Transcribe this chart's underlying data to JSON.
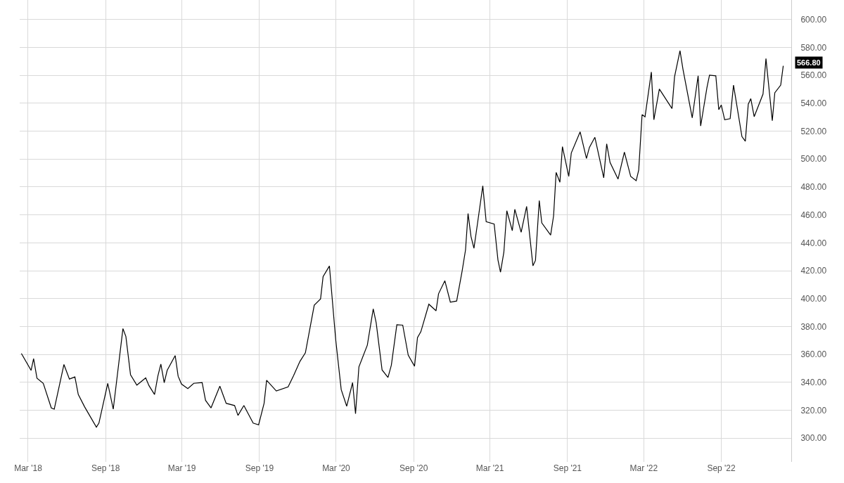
{
  "chart_data": {
    "type": "line",
    "color": "#000000",
    "grid": true,
    "x": [
      "2018-02-13",
      "2018-03-08",
      "2018-03-14",
      "2018-03-22",
      "2018-04-06",
      "2018-04-25",
      "2018-05-02",
      "2018-05-25",
      "2018-06-07",
      "2018-06-20",
      "2018-06-28",
      "2018-07-13",
      "2018-08-10",
      "2018-08-16",
      "2018-09-06",
      "2018-09-19",
      "2018-10-12",
      "2018-10-19",
      "2018-10-30",
      "2018-11-14",
      "2018-12-05",
      "2018-12-13",
      "2018-12-26",
      "2019-01-03",
      "2019-01-10",
      "2019-01-18",
      "2019-01-25",
      "2019-02-13",
      "2019-02-20",
      "2019-02-28",
      "2019-03-15",
      "2019-03-29",
      "2019-04-18",
      "2019-04-26",
      "2019-05-09",
      "2019-05-30",
      "2019-06-14",
      "2019-07-04",
      "2019-07-12",
      "2019-07-26",
      "2019-08-17",
      "2019-08-30",
      "2019-09-12",
      "2019-09-18",
      "2019-10-11",
      "2019-11-08",
      "2019-11-21",
      "2019-12-06",
      "2019-12-19",
      "2020-01-09",
      "2020-01-24",
      "2020-01-30",
      "2020-02-14",
      "2020-02-29",
      "2020-03-13",
      "2020-03-26",
      "2020-04-09",
      "2020-04-16",
      "2020-04-24",
      "2020-05-14",
      "2020-05-28",
      "2020-06-04",
      "2020-06-18",
      "2020-07-02",
      "2020-07-10",
      "2020-07-23",
      "2020-08-06",
      "2020-08-19",
      "2020-09-03",
      "2020-09-10",
      "2020-09-18",
      "2020-10-07",
      "2020-10-24",
      "2020-10-30",
      "2020-11-14",
      "2020-11-27",
      "2020-12-12",
      "2020-12-25",
      "2021-01-02",
      "2021-01-08",
      "2021-01-15",
      "2021-01-22",
      "2021-01-30",
      "2021-02-12",
      "2021-02-20",
      "2021-03-11",
      "2021-03-20",
      "2021-03-26",
      "2021-04-03",
      "2021-04-10",
      "2021-04-23",
      "2021-04-29",
      "2021-05-14",
      "2021-05-27",
      "2021-06-11",
      "2021-06-17",
      "2021-06-26",
      "2021-07-02",
      "2021-07-23",
      "2021-07-30",
      "2021-08-05",
      "2021-08-14",
      "2021-08-20",
      "2021-09-04",
      "2021-09-10",
      "2021-10-01",
      "2021-10-16",
      "2021-10-23",
      "2021-11-05",
      "2021-11-26",
      "2021-12-03",
      "2021-12-11",
      "2021-12-30",
      "2022-01-14",
      "2022-01-29",
      "2022-02-11",
      "2022-02-17",
      "2022-02-25",
      "2022-03-04",
      "2022-03-19",
      "2022-03-25",
      "2022-04-07",
      "2022-05-07",
      "2022-05-13",
      "2022-05-26",
      "2022-06-02",
      "2022-06-24",
      "2022-07-08",
      "2022-07-14",
      "2022-07-29",
      "2022-08-04",
      "2022-08-19",
      "2022-08-26",
      "2022-09-01",
      "2022-09-09",
      "2022-09-22",
      "2022-09-30",
      "2022-10-20",
      "2022-10-28",
      "2022-11-04",
      "2022-11-10",
      "2022-11-18",
      "2022-12-09",
      "2022-12-16",
      "2022-12-31",
      "2023-01-06",
      "2023-01-20",
      "2023-01-26"
    ],
    "values": [
      360.7,
      348.6,
      357,
      343,
      339.3,
      321.7,
      320.8,
      352.8,
      342.4,
      343.9,
      331.3,
      322.5,
      307.9,
      310.8,
      339.3,
      320.8,
      378.5,
      372.9,
      345.5,
      338,
      343.2,
      337.6,
      331.3,
      344.7,
      353.1,
      339.7,
      348.6,
      359.2,
      344.4,
      338.8,
      335.5,
      339.3,
      339.8,
      327.1,
      321.7,
      337.3,
      325,
      323.4,
      316.3,
      323.4,
      310.8,
      309.6,
      325,
      341.5,
      333.8,
      336.8,
      344.9,
      355,
      361.2,
      395.3,
      399.8,
      415.8,
      423.4,
      370.4,
      334.8,
      322.9,
      339.8,
      317.5,
      351.1,
      366.7,
      392.6,
      382.7,
      348.9,
      343.5,
      352.3,
      381.3,
      381,
      359.5,
      351.6,
      372.1,
      376.3,
      396,
      391.3,
      403.5,
      412.8,
      397.5,
      398.3,
      419.8,
      434.9,
      461,
      444.5,
      436.1,
      452.9,
      480.8,
      455.1,
      453.4,
      427.7,
      419,
      433.3,
      463,
      448.7,
      464,
      447.6,
      466.1,
      423.5,
      427.4,
      470.3,
      454.3,
      445.5,
      459.3,
      490.4,
      483.4,
      508.9,
      487.6,
      504.4,
      519.5,
      500.5,
      508.4,
      515.6,
      486.6,
      510.9,
      497.6,
      485.7,
      505,
      487.6,
      484.5,
      492.1,
      531.9,
      530.3,
      562.4,
      528.2,
      550.2,
      536.2,
      558.9,
      577.7,
      564.4,
      529.5,
      559.7,
      523.7,
      551.3,
      560.2,
      559.7,
      535.4,
      538.8,
      528.2,
      529,
      553,
      516.1,
      512.8,
      539.3,
      543.3,
      530.4,
      546.6,
      572,
      527.5,
      547.5,
      553,
      566.8
    ],
    "xlim": [
      "2018-02-09",
      "2023-02-14"
    ],
    "xticks": [
      {
        "value": "2018-03-01",
        "label": "Mar '18"
      },
      {
        "value": "2018-09-01",
        "label": "Sep '18"
      },
      {
        "value": "2019-03-01",
        "label": "Mar '19"
      },
      {
        "value": "2019-09-01",
        "label": "Sep '19"
      },
      {
        "value": "2020-03-01",
        "label": "Mar '20"
      },
      {
        "value": "2020-09-01",
        "label": "Sep '20"
      },
      {
        "value": "2021-03-01",
        "label": "Mar '21"
      },
      {
        "value": "2021-09-01",
        "label": "Sep '21"
      },
      {
        "value": "2022-03-01",
        "label": "Mar '22"
      },
      {
        "value": "2022-09-01",
        "label": "Sep '22"
      }
    ],
    "ylim": [
      283,
      614
    ],
    "yticks": [
      {
        "value": 300,
        "label": "300.00"
      },
      {
        "value": 320,
        "label": "320.00"
      },
      {
        "value": 340,
        "label": "340.00"
      },
      {
        "value": 360,
        "label": "360.00"
      },
      {
        "value": 380,
        "label": "380.00"
      },
      {
        "value": 400,
        "label": "400.00"
      },
      {
        "value": 420,
        "label": "420.00"
      },
      {
        "value": 440,
        "label": "440.00"
      },
      {
        "value": 460,
        "label": "460.00"
      },
      {
        "value": 480,
        "label": "480.00"
      },
      {
        "value": 500,
        "label": "500.00"
      },
      {
        "value": 520,
        "label": "520.00"
      },
      {
        "value": 540,
        "label": "540.00"
      },
      {
        "value": 560,
        "label": "560.00"
      },
      {
        "value": 580,
        "label": "580.00"
      },
      {
        "value": 600,
        "label": "600.00"
      }
    ],
    "annotations": [
      {
        "text": "566.80",
        "x": "2023-01-26",
        "y": 566.8
      }
    ]
  }
}
